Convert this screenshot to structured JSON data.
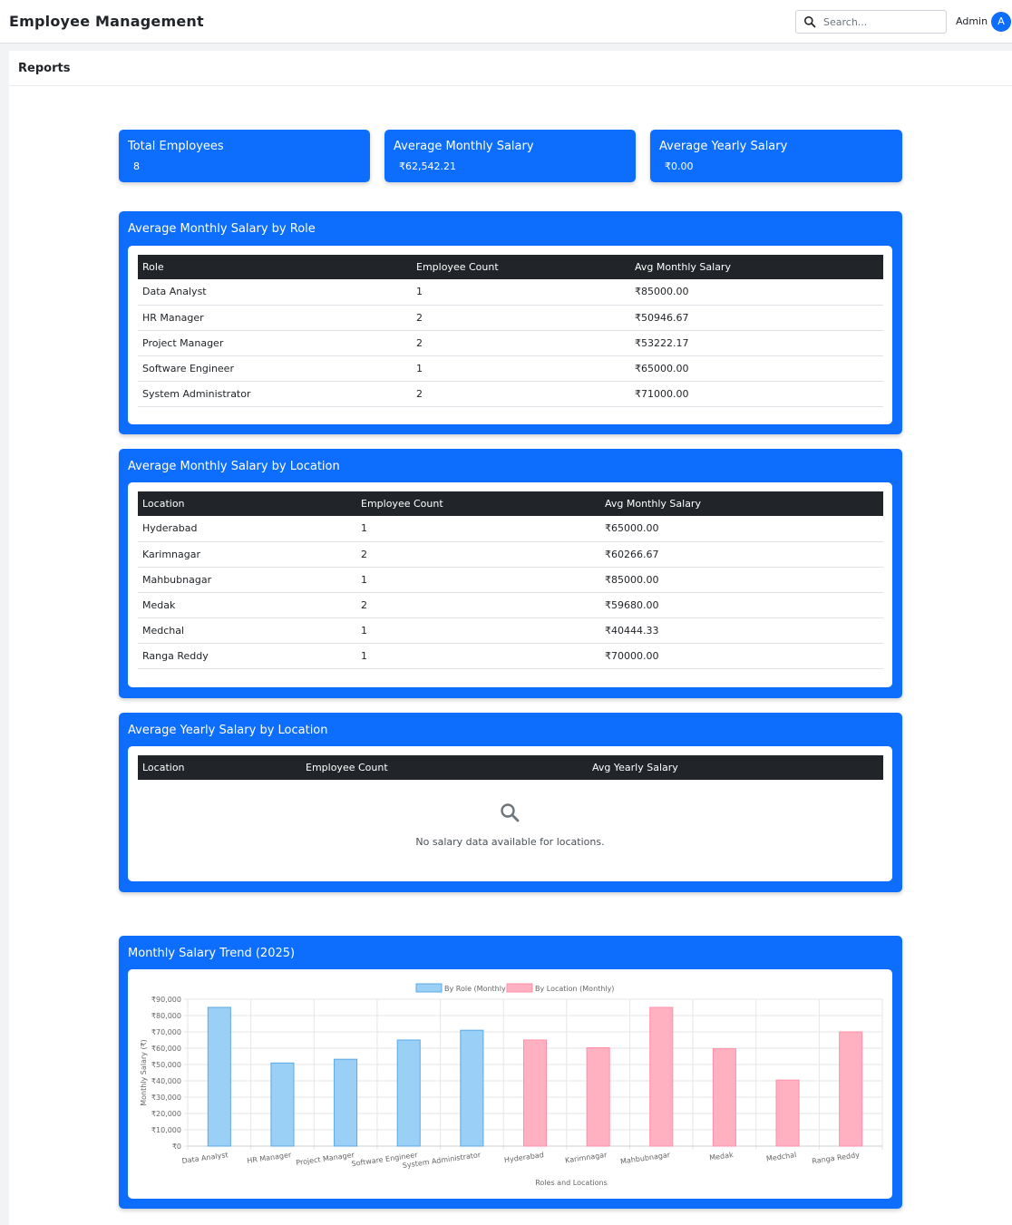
{
  "header": {
    "app_title": "Employee Management",
    "search_placeholder": "Search...",
    "user_label": "Admin",
    "avatar_initial": "A"
  },
  "page": {
    "title": "Reports"
  },
  "stats": [
    {
      "title": "Total Employees",
      "value": "8"
    },
    {
      "title": "Average Monthly Salary",
      "value": "₹62,542.21"
    },
    {
      "title": "Average Yearly Salary",
      "value": "₹0.00"
    }
  ],
  "by_role": {
    "title": "Average Monthly Salary by Role",
    "columns": [
      "Role",
      "Employee Count",
      "Avg Monthly Salary"
    ],
    "rows": [
      [
        "Data Analyst",
        "1",
        "₹85000.00"
      ],
      [
        "HR Manager",
        "2",
        "₹50946.67"
      ],
      [
        "Project Manager",
        "2",
        "₹53222.17"
      ],
      [
        "Software Engineer",
        "1",
        "₹65000.00"
      ],
      [
        "System Administrator",
        "2",
        "₹71000.00"
      ]
    ]
  },
  "by_location": {
    "title": "Average Monthly Salary by Location",
    "columns": [
      "Location",
      "Employee Count",
      "Avg Monthly Salary"
    ],
    "rows": [
      [
        "Hyderabad",
        "1",
        "₹65000.00"
      ],
      [
        "Karimnagar",
        "2",
        "₹60266.67"
      ],
      [
        "Mahbubnagar",
        "1",
        "₹85000.00"
      ],
      [
        "Medak",
        "2",
        "₹59680.00"
      ],
      [
        "Medchal",
        "1",
        "₹40444.33"
      ],
      [
        "Ranga Reddy",
        "1",
        "₹70000.00"
      ]
    ]
  },
  "yearly_by_location": {
    "title": "Average Yearly Salary by Location",
    "columns": [
      "Location",
      "Employee Count",
      "Avg Yearly Salary"
    ],
    "empty_message": "No salary data available for locations.",
    "empty_icon": "search-icon"
  },
  "trend": {
    "title": "Monthly Salary Trend (2025)"
  },
  "chart_data": {
    "type": "bar",
    "categories": [
      "Data Analyst",
      "HR Manager",
      "Project Manager",
      "Software Engineer",
      "System Administrator",
      "Hyderabad",
      "Karimnagar",
      "Mahbubnagar",
      "Medak",
      "Medchal",
      "Ranga Reddy"
    ],
    "series": [
      {
        "name": "By Role (Monthly)",
        "color": "#9ad0f5",
        "border": "#5aa9e6",
        "values": [
          85000,
          50946.67,
          53222.17,
          65000,
          71000,
          null,
          null,
          null,
          null,
          null,
          null
        ]
      },
      {
        "name": "By Location (Monthly)",
        "color": "#ffb1c1",
        "border": "#ff8fa8",
        "values": [
          null,
          null,
          null,
          null,
          null,
          65000,
          60266.67,
          85000,
          59680,
          40444.33,
          70000
        ]
      }
    ],
    "xlabel": "Roles and Locations",
    "ylabel": "Monthly Salary (₹)",
    "ylim": [
      0,
      90000
    ],
    "yticks": [
      "₹0",
      "₹10,000",
      "₹20,000",
      "₹30,000",
      "₹40,000",
      "₹50,000",
      "₹60,000",
      "₹70,000",
      "₹80,000",
      "₹90,000"
    ],
    "grid": true,
    "legend": "top-center"
  }
}
